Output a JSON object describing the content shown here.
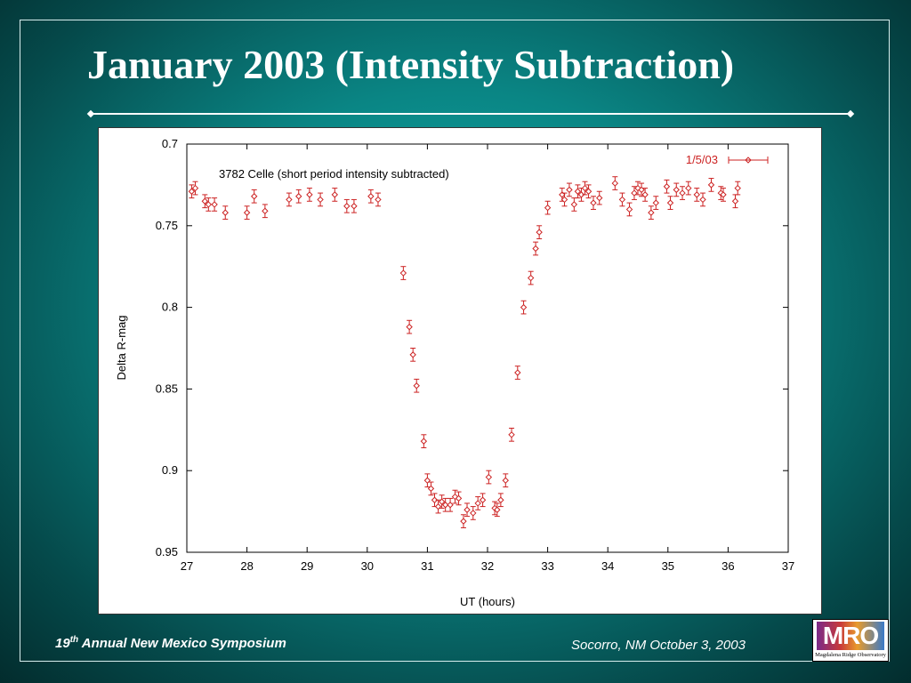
{
  "slide": {
    "title": "January 2003 (Intensity Subtraction)",
    "footer_left_prefix": "19",
    "footer_left_sup": "th",
    "footer_left_suffix": " Annual New Mexico Symposium",
    "footer_right": "Socorro, NM October 3, 2003",
    "logo_text": "MRO",
    "logo_subtext": "Magdalena Ridge Observatory",
    "colors": {
      "background": "#0a8584",
      "text": "#ffffff",
      "data": "#cc2222"
    },
    "icons": [
      "mro-logo"
    ]
  },
  "chart_data": {
    "type": "scatter",
    "title": "",
    "annotation": "3782 Celle (short period intensity subtracted)",
    "xlabel": "UT (hours)",
    "ylabel": "Delta R-mag",
    "xlim": [
      27,
      37
    ],
    "ylim": [
      0.7,
      0.95
    ],
    "y_inverted": true,
    "x_ticks": [
      "27",
      "28",
      "29",
      "30",
      "31",
      "32",
      "33",
      "34",
      "35",
      "36",
      "37"
    ],
    "y_ticks": [
      "0.7",
      "0.75",
      "0.8",
      "0.85",
      "0.9",
      "0.95"
    ],
    "grid": false,
    "legend_position": "top-right",
    "series": [
      {
        "name": "1/5/03",
        "color": "#cc2222",
        "marker": "diamond",
        "error_bar": 0.004,
        "x": [
          27.08,
          27.14,
          27.3,
          27.36,
          27.46,
          27.64,
          28.0,
          28.12,
          28.3,
          28.7,
          28.86,
          29.04,
          29.22,
          29.46,
          29.66,
          29.78,
          30.06,
          30.18,
          30.6,
          30.7,
          30.76,
          30.82,
          30.94,
          31.0,
          31.06,
          31.12,
          31.18,
          31.24,
          31.3,
          31.38,
          31.46,
          31.52,
          31.6,
          31.66,
          31.76,
          31.84,
          31.92,
          32.02,
          32.12,
          32.16,
          32.22,
          32.3,
          32.4,
          32.5,
          32.6,
          32.72,
          32.8,
          32.86,
          33.0,
          33.24,
          33.28,
          33.36,
          33.44,
          33.5,
          33.56,
          33.62,
          33.68,
          33.76,
          33.86,
          34.12,
          34.24,
          34.36,
          34.44,
          34.5,
          34.56,
          34.62,
          34.72,
          34.8,
          34.98,
          35.04,
          35.14,
          35.24,
          35.34,
          35.48,
          35.58,
          35.72,
          35.88,
          35.92,
          36.12,
          36.16
        ],
        "y": [
          0.729,
          0.727,
          0.735,
          0.737,
          0.737,
          0.742,
          0.742,
          0.732,
          0.741,
          0.734,
          0.732,
          0.731,
          0.734,
          0.731,
          0.738,
          0.738,
          0.732,
          0.734,
          0.779,
          0.812,
          0.829,
          0.848,
          0.882,
          0.906,
          0.911,
          0.918,
          0.922,
          0.919,
          0.921,
          0.921,
          0.916,
          0.917,
          0.931,
          0.924,
          0.926,
          0.92,
          0.918,
          0.904,
          0.923,
          0.924,
          0.918,
          0.906,
          0.878,
          0.84,
          0.8,
          0.782,
          0.764,
          0.754,
          0.739,
          0.731,
          0.734,
          0.728,
          0.737,
          0.729,
          0.731,
          0.727,
          0.729,
          0.736,
          0.733,
          0.724,
          0.734,
          0.74,
          0.73,
          0.727,
          0.728,
          0.731,
          0.742,
          0.736,
          0.726,
          0.736,
          0.728,
          0.73,
          0.727,
          0.731,
          0.734,
          0.725,
          0.73,
          0.731,
          0.735,
          0.727
        ]
      }
    ]
  }
}
